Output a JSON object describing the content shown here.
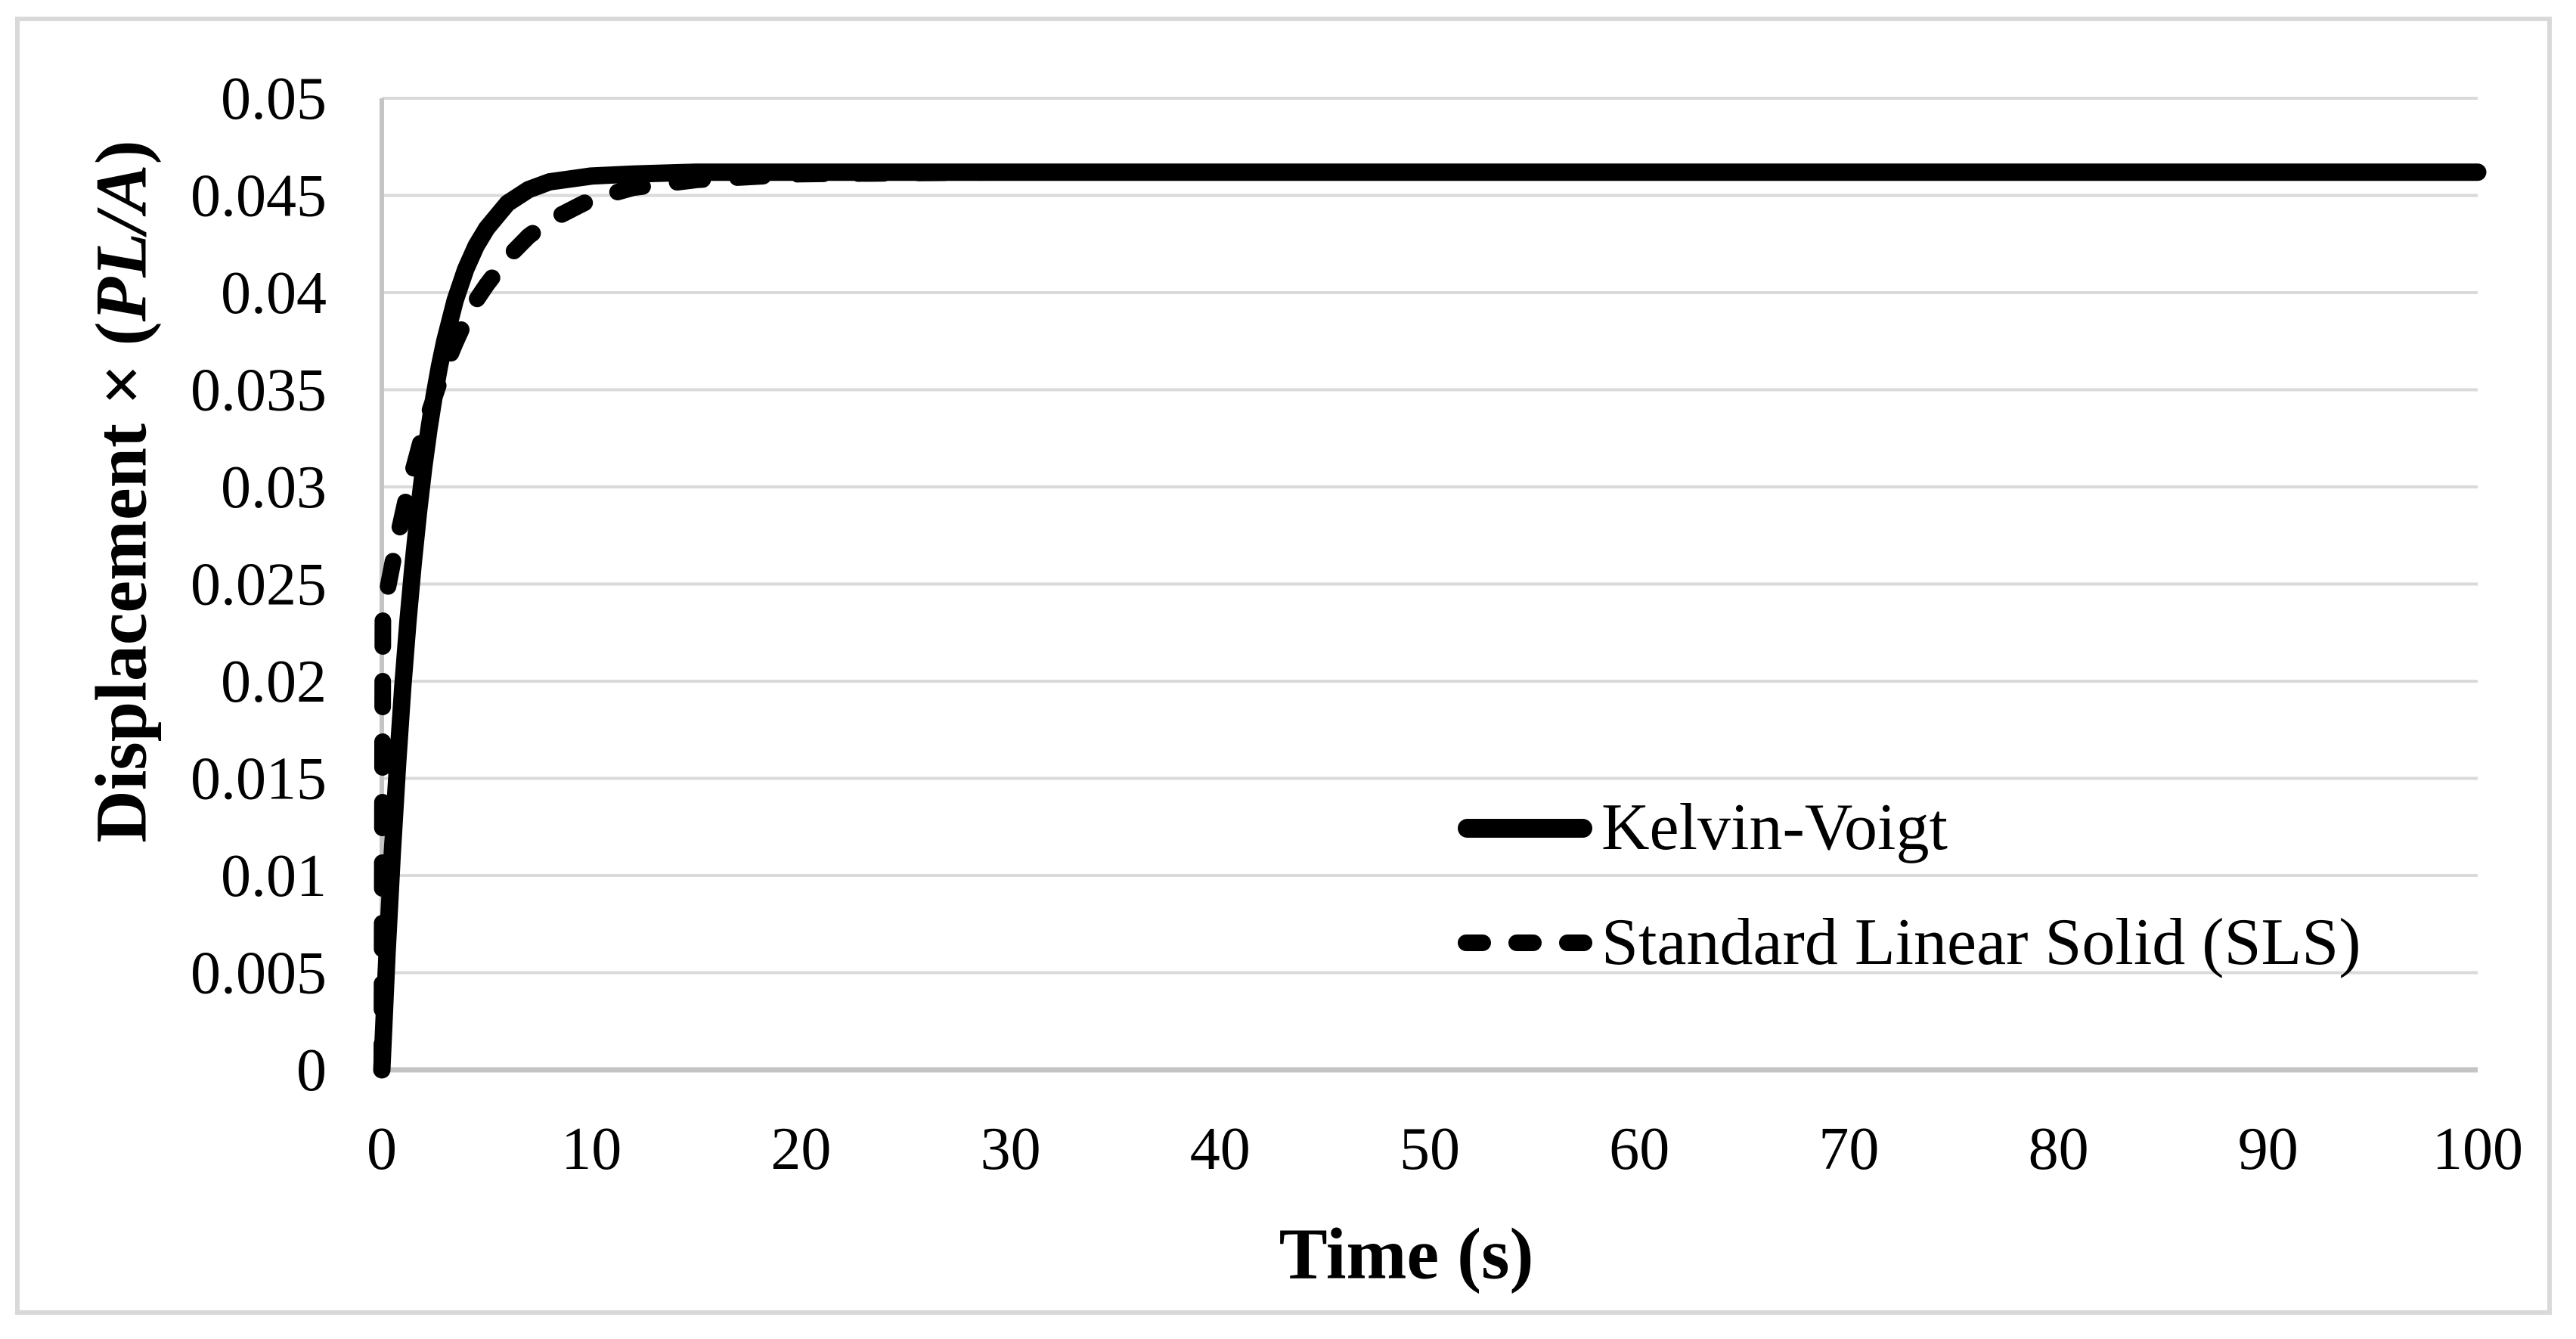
{
  "figure": {
    "background_color": "#ffffff",
    "border_color": "#d9d9d9",
    "gridline_color": "#dadada",
    "axis_line_color": "#c4c4c4",
    "series_color": "#000000"
  },
  "chart_data": {
    "type": "line",
    "title": "",
    "xlabel": "Time (s)",
    "ylabel": "Displacement × (PL/A)",
    "ylabel_prefix": "Displacement × (",
    "ylabel_italic": "PL/A",
    "ylabel_suffix": ")",
    "xlim": [
      0,
      100
    ],
    "ylim": [
      0,
      0.05
    ],
    "x_tick_labels": [
      "0",
      "10",
      "20",
      "30",
      "40",
      "50",
      "60",
      "70",
      "80",
      "90",
      "100"
    ],
    "x_ticks": [
      0,
      10,
      20,
      30,
      40,
      50,
      60,
      70,
      80,
      90,
      100
    ],
    "y_tick_labels": [
      "0",
      "0.005",
      "0.01",
      "0.015",
      "0.02",
      "0.025",
      "0.03",
      "0.035",
      "0.04",
      "0.045",
      "0.05"
    ],
    "y_ticks": [
      0,
      0.005,
      0.01,
      0.015,
      0.02,
      0.025,
      0.03,
      0.035,
      0.04,
      0.045,
      0.05
    ],
    "grid": "horizontal-only",
    "legend_position": "inside-right-middle",
    "plateau_value": 0.0462,
    "series": [
      {
        "name": "Kelvin-Voigt",
        "style": "solid",
        "color": "#000000",
        "points": [
          [
            0,
            0
          ],
          [
            0.25,
            0.006
          ],
          [
            0.5,
            0.0112
          ],
          [
            0.75,
            0.0157
          ],
          [
            1,
            0.0197
          ],
          [
            1.25,
            0.0231
          ],
          [
            1.5,
            0.0261
          ],
          [
            1.75,
            0.0287
          ],
          [
            2,
            0.031
          ],
          [
            2.25,
            0.033
          ],
          [
            2.5,
            0.0347
          ],
          [
            2.75,
            0.0362
          ],
          [
            3,
            0.0375
          ],
          [
            3.5,
            0.0396
          ],
          [
            4,
            0.0412
          ],
          [
            4.5,
            0.0424
          ],
          [
            5,
            0.0433
          ],
          [
            6,
            0.0446
          ],
          [
            7,
            0.0453
          ],
          [
            8,
            0.0457
          ],
          [
            10,
            0.046
          ],
          [
            12,
            0.0461
          ],
          [
            15,
            0.0462
          ],
          [
            20,
            0.0462
          ],
          [
            30,
            0.0462
          ],
          [
            40,
            0.0462
          ],
          [
            50,
            0.0462
          ],
          [
            60,
            0.0462
          ],
          [
            70,
            0.0462
          ],
          [
            80,
            0.0462
          ],
          [
            90,
            0.0462
          ],
          [
            100,
            0.0462
          ]
        ]
      },
      {
        "name": "Standard Linear Solid (SLS)",
        "style": "dashed",
        "color": "#000000",
        "points": [
          [
            0,
            0
          ],
          [
            0.05,
            0.0233
          ],
          [
            0.25,
            0.0246
          ],
          [
            0.5,
            0.026
          ],
          [
            0.75,
            0.0274
          ],
          [
            1,
            0.0286
          ],
          [
            1.25,
            0.0298
          ],
          [
            1.5,
            0.0309
          ],
          [
            1.75,
            0.0319
          ],
          [
            2,
            0.0329
          ],
          [
            2.25,
            0.0338
          ],
          [
            2.5,
            0.0346
          ],
          [
            2.75,
            0.0354
          ],
          [
            3,
            0.0361
          ],
          [
            3.5,
            0.0374
          ],
          [
            4,
            0.0386
          ],
          [
            4.5,
            0.0396
          ],
          [
            5,
            0.0404
          ],
          [
            6,
            0.0418
          ],
          [
            7,
            0.0429
          ],
          [
            8,
            0.0437
          ],
          [
            10,
            0.0448
          ],
          [
            12,
            0.0454
          ],
          [
            15,
            0.0458
          ],
          [
            20,
            0.0461
          ],
          [
            30,
            0.0462
          ],
          [
            40,
            0.0462
          ],
          [
            50,
            0.0462
          ],
          [
            60,
            0.0462
          ],
          [
            70,
            0.0462
          ],
          [
            80,
            0.0462
          ],
          [
            90,
            0.0462
          ],
          [
            100,
            0.0462
          ]
        ]
      }
    ]
  }
}
